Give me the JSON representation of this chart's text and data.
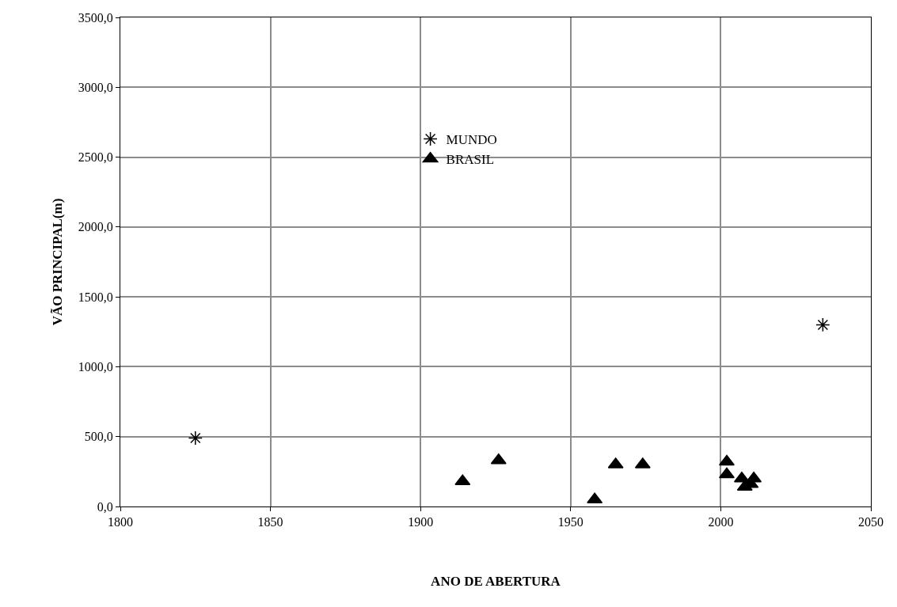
{
  "chart_data": {
    "type": "scatter",
    "xlabel": "ANO DE ABERTURA",
    "ylabel": "VÃO PRINCIPAL(m)",
    "xlim": [
      1800,
      2050
    ],
    "xticks": [
      1800,
      1850,
      1900,
      1950,
      2000,
      2050
    ],
    "ylim": [
      0,
      3500
    ],
    "yticks": [
      {
        "value": 0,
        "label": "0,0"
      },
      {
        "value": 500,
        "label": "500,0"
      },
      {
        "value": 1000,
        "label": "1000,0"
      },
      {
        "value": 1500,
        "label": "1500,0"
      },
      {
        "value": 2000,
        "label": "2000,0"
      },
      {
        "value": 2500,
        "label": "2500,0"
      },
      {
        "value": 3000,
        "label": "3000,0"
      },
      {
        "value": 3500,
        "label": "3500,0"
      }
    ],
    "grid": true,
    "legend": "top",
    "series": [
      {
        "name": "MUNDO",
        "color": "#000000",
        "marker": "cross",
        "x": [
          1825,
          2034
        ],
        "values": [
          490,
          1300
        ]
      },
      {
        "name": "BRASIL",
        "color": "#000000",
        "marker": "triangle",
        "x": [
          1914,
          1926,
          1958,
          1965,
          1974,
          2002,
          2002,
          2007,
          2008,
          2010,
          2011
        ],
        "values": [
          180,
          330,
          50,
          300,
          300,
          320,
          230,
          200,
          140,
          160,
          200
        ]
      }
    ]
  }
}
